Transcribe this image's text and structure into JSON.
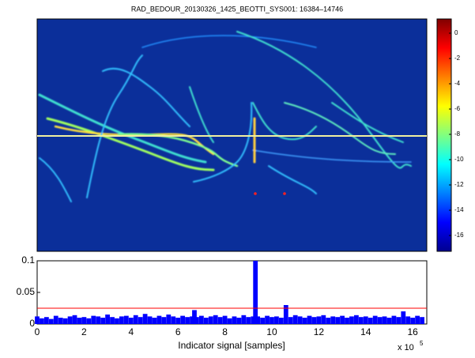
{
  "chart_data": [
    {
      "type": "heatmap",
      "title": "RAD_BEDOUR_20130326_1425_BEOTTI_SYS001: 16384–14746",
      "clim": [
        -17.25,
        1.125
      ],
      "colorbar_ticks": [
        0,
        -2,
        -4,
        -6,
        -8,
        -10,
        -12,
        -14,
        -16
      ],
      "colormap": [
        "#00008f",
        "#0000ff",
        "#0080ff",
        "#00ffff",
        "#80ff80",
        "#ffff00",
        "#ff8000",
        "#ff0000",
        "#800000"
      ]
    },
    {
      "type": "bar",
      "xlabel": "Indicator signal [samples]",
      "x_multiplier": "x 10",
      "x_exponent": "5",
      "xlim": [
        0,
        1660000
      ],
      "ylim": [
        0,
        0.1
      ],
      "yticks": [
        0,
        0.05,
        0.1
      ],
      "xticks": [
        0,
        {
          "value": 200000,
          "label": "2"
        },
        {
          "value": 400000,
          "label": "4"
        },
        {
          "value": 600000,
          "label": "6"
        },
        {
          "value": 800000,
          "label": "8"
        },
        {
          "value": 1000000,
          "label": "10"
        },
        {
          "value": 1200000,
          "label": "12"
        },
        {
          "value": 1400000,
          "label": "14"
        },
        {
          "value": 1600000,
          "label": "16"
        }
      ],
      "threshold": {
        "value": 0.025,
        "color": "#ff0000"
      },
      "x": [
        0,
        20000,
        40000,
        60000,
        80000,
        100000,
        120000,
        140000,
        160000,
        180000,
        200000,
        220000,
        240000,
        260000,
        280000,
        300000,
        320000,
        340000,
        360000,
        380000,
        400000,
        420000,
        440000,
        460000,
        480000,
        500000,
        520000,
        540000,
        560000,
        580000,
        600000,
        620000,
        640000,
        660000,
        670000,
        680000,
        700000,
        720000,
        740000,
        760000,
        780000,
        800000,
        820000,
        840000,
        860000,
        880000,
        900000,
        920000,
        930000,
        940000,
        960000,
        980000,
        1000000,
        1020000,
        1040000,
        1060000,
        1080000,
        1100000,
        1120000,
        1140000,
        1160000,
        1180000,
        1200000,
        1220000,
        1240000,
        1260000,
        1280000,
        1300000,
        1320000,
        1340000,
        1360000,
        1380000,
        1400000,
        1420000,
        1440000,
        1460000,
        1480000,
        1500000,
        1520000,
        1540000,
        1560000,
        1580000,
        1600000,
        1620000,
        1640000
      ],
      "series": [
        {
          "color": "#0000ff",
          "values": [
            0.012,
            0.009,
            0.011,
            0.008,
            0.013,
            0.01,
            0.009,
            0.012,
            0.014,
            0.01,
            0.011,
            0.009,
            0.013,
            0.012,
            0.01,
            0.015,
            0.011,
            0.009,
            0.012,
            0.013,
            0.01,
            0.014,
            0.011,
            0.016,
            0.012,
            0.01,
            0.013,
            0.011,
            0.015,
            0.012,
            0.01,
            0.013,
            0.011,
            0.012,
            0.022,
            0.011,
            0.013,
            0.01,
            0.012,
            0.014,
            0.011,
            0.013,
            0.009,
            0.012,
            0.01,
            0.014,
            0.011,
            0.012,
            0.1,
            0.012,
            0.01,
            0.013,
            0.011,
            0.012,
            0.01,
            0.03,
            0.011,
            0.014,
            0.012,
            0.01,
            0.013,
            0.011,
            0.012,
            0.014,
            0.01,
            0.012,
            0.011,
            0.013,
            0.01,
            0.012,
            0.014,
            0.011,
            0.012,
            0.01,
            0.013,
            0.011,
            0.012,
            0.01,
            0.013,
            0.011,
            0.02,
            0.012,
            0.01,
            0.013,
            0.011
          ]
        }
      ]
    }
  ]
}
